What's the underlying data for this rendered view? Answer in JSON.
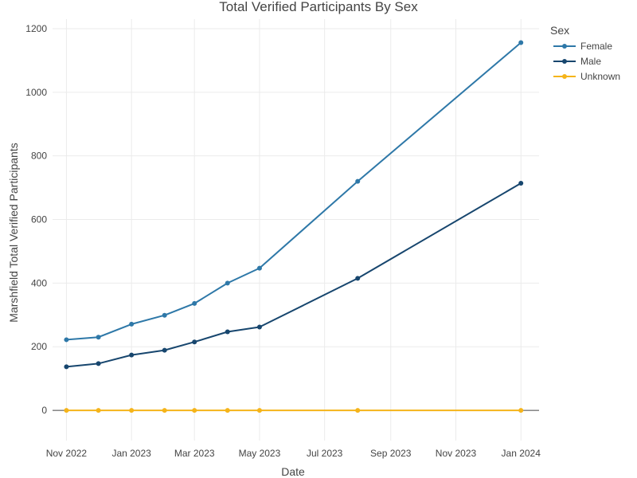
{
  "chart_data": {
    "type": "line",
    "title": "Total Verified Participants By Sex",
    "xlabel": "Date",
    "ylabel": "Marshfield Total Verified Participants",
    "x": [
      "2022-11-01",
      "2022-12-01",
      "2023-01-01",
      "2023-02-01",
      "2023-03-01",
      "2023-04-01",
      "2023-05-01",
      "2023-08-01",
      "2024-01-01"
    ],
    "x_ticks": [
      {
        "date": "2022-11-01",
        "label": "Nov 2022"
      },
      {
        "date": "2023-01-01",
        "label": "Jan 2023"
      },
      {
        "date": "2023-03-01",
        "label": "Mar 2023"
      },
      {
        "date": "2023-05-01",
        "label": "May 2023"
      },
      {
        "date": "2023-07-01",
        "label": "Jul 2023"
      },
      {
        "date": "2023-09-01",
        "label": "Sep 2023"
      },
      {
        "date": "2023-11-01",
        "label": "Nov 2023"
      },
      {
        "date": "2024-01-01",
        "label": "Jan 2024"
      }
    ],
    "xlim": [
      "2022-10-19",
      "2024-01-18"
    ],
    "ylim": [
      -95,
      1230
    ],
    "y_ticks": [
      0,
      200,
      400,
      600,
      800,
      1000,
      1200
    ],
    "grid": true,
    "legend": {
      "title": "Sex",
      "position": "top-right"
    },
    "series": [
      {
        "name": "Female",
        "color": "#2e78a8",
        "values": [
          222,
          230,
          271,
          299,
          336,
          400,
          447,
          720,
          1156
        ]
      },
      {
        "name": "Male",
        "color": "#17466e",
        "values": [
          137,
          147,
          174,
          189,
          215,
          247,
          262,
          415,
          714
        ]
      },
      {
        "name": "Unknown",
        "color": "#f5b41a",
        "values": [
          0,
          0,
          0,
          0,
          0,
          0,
          0,
          0,
          0
        ]
      }
    ]
  }
}
